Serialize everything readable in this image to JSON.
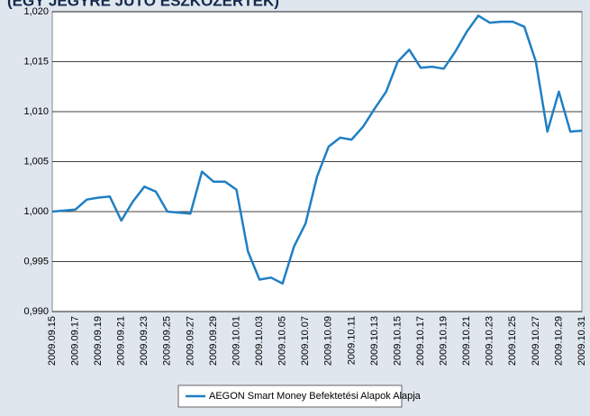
{
  "chart_data": {
    "type": "line",
    "title": "(EGY JEGYRE JUTÓ ESZKÖZÉRTÉK)",
    "categories": [
      "2009.09.15",
      null,
      "2009.09.17",
      null,
      "2009.09.19",
      null,
      "2009.09.21",
      null,
      "2009.09.23",
      null,
      "2009.09.25",
      null,
      "2009.09.27",
      null,
      "2009.09.29",
      null,
      "2009.10.01",
      null,
      "2009.10.03",
      null,
      "2009.10.05",
      null,
      "2009.10.07",
      null,
      "2009.10.09",
      null,
      "2009.10.11",
      null,
      "2009.10.13",
      null,
      "2009.10.15",
      null,
      "2009.10.17",
      null,
      "2009.10.19",
      null,
      "2009.10.21",
      null,
      "2009.10.23",
      null,
      "2009.10.25",
      null,
      "2009.10.27",
      null,
      "2009.10.29",
      null,
      "2009.10.31"
    ],
    "series": [
      {
        "name": "AEGON Smart Money Befektetési Alapok Alapja",
        "color": "#1f7fc4",
        "values": [
          1.0,
          1.0001,
          1.0002,
          1.0012,
          1.0014,
          1.0015,
          0.9991,
          1.001,
          1.0025,
          1.002,
          1.0,
          0.9999,
          0.9998,
          1.004,
          1.003,
          1.003,
          1.0022,
          0.996,
          0.9932,
          0.9934,
          0.9928,
          0.9965,
          0.9988,
          1.0035,
          1.0065,
          1.0074,
          1.0072,
          1.0085,
          1.0103,
          1.012,
          1.015,
          1.0162,
          1.0144,
          1.0145,
          1.0143,
          1.016,
          1.018,
          1.0196,
          1.0189,
          1.019,
          1.019,
          1.0185,
          1.015,
          1.008,
          1.012,
          1.008,
          1.0081
        ]
      }
    ],
    "ylim": [
      0.99,
      1.02
    ],
    "yticks": [
      {
        "value": 0.99,
        "label": "0,990"
      },
      {
        "value": 0.995,
        "label": "0,995"
      },
      {
        "value": 1.0,
        "label": "1,000"
      },
      {
        "value": 1.005,
        "label": "1,005"
      },
      {
        "value": 1.01,
        "label": "1,010"
      },
      {
        "value": 1.015,
        "label": "1,015"
      },
      {
        "value": 1.02,
        "label": "1,020"
      }
    ],
    "grid": true,
    "legend": "bottom"
  }
}
